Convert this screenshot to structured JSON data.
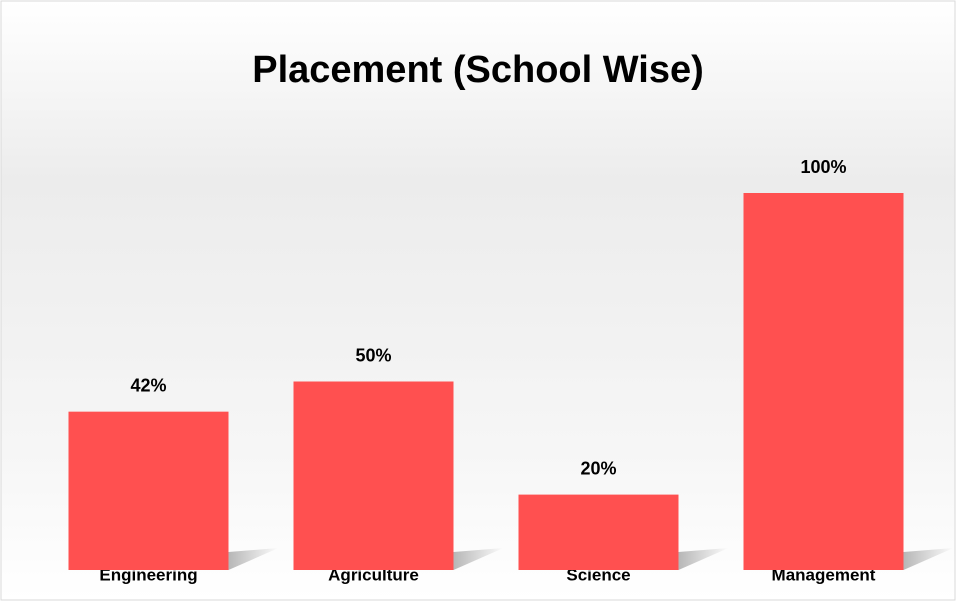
{
  "chart_data": {
    "type": "bar",
    "title": "Placement (School Wise)",
    "categories": [
      "Engineering",
      "Agriculture",
      "Science",
      "Management"
    ],
    "values": [
      42,
      50,
      20,
      100
    ],
    "value_labels": [
      "42%",
      "50%",
      "20%",
      "100%"
    ],
    "color": "#ff5050"
  }
}
